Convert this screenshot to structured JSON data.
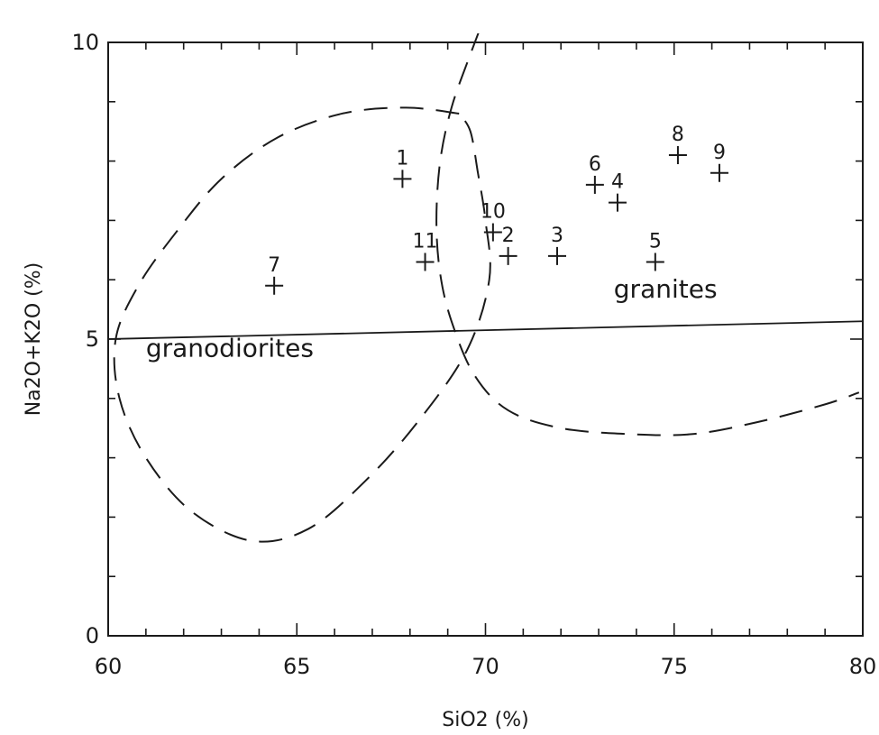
{
  "chart_data": {
    "type": "scatter",
    "xlabel": "SiO2 (%)",
    "ylabel": "Na2O+K2O (%)",
    "xlim": [
      60,
      80
    ],
    "ylim": [
      0,
      10
    ],
    "x_ticks": [
      60,
      65,
      70,
      75,
      80
    ],
    "y_ticks": [
      0,
      5,
      10
    ],
    "x_minor_step": 1,
    "y_minor_step": 1,
    "grid": false,
    "points": [
      {
        "label": "1",
        "x": 67.8,
        "y": 7.7
      },
      {
        "label": "2",
        "x": 70.6,
        "y": 6.4
      },
      {
        "label": "3",
        "x": 71.9,
        "y": 6.4
      },
      {
        "label": "4",
        "x": 73.5,
        "y": 7.3
      },
      {
        "label": "5",
        "x": 74.5,
        "y": 6.3
      },
      {
        "label": "6",
        "x": 72.9,
        "y": 7.6
      },
      {
        "label": "7",
        "x": 64.4,
        "y": 5.9
      },
      {
        "label": "8",
        "x": 75.1,
        "y": 8.1
      },
      {
        "label": "9",
        "x": 76.2,
        "y": 7.8
      },
      {
        "label": "10",
        "x": 70.2,
        "y": 6.8
      },
      {
        "label": "11",
        "x": 68.4,
        "y": 6.3
      }
    ],
    "divider_line": [
      [
        60,
        5
      ],
      [
        80,
        5.3
      ]
    ],
    "regions": [
      {
        "name": "granodiorites",
        "label_at": [
          61,
          4.7
        ],
        "boundary": [
          [
            69.3,
            8.8
          ],
          [
            67.9,
            8.9
          ],
          [
            66.2,
            8.8
          ],
          [
            64.5,
            8.4
          ],
          [
            63,
            7.7
          ],
          [
            61.8,
            6.8
          ],
          [
            60.8,
            5.9
          ],
          [
            60.2,
            5.0
          ],
          [
            60.3,
            4.0
          ],
          [
            61,
            3.0
          ],
          [
            62.2,
            2.1
          ],
          [
            63.8,
            1.6
          ],
          [
            65.3,
            1.8
          ],
          [
            66.8,
            2.6
          ],
          [
            68.2,
            3.6
          ],
          [
            69.5,
            4.8
          ],
          [
            70.1,
            6.0
          ],
          [
            70.0,
            7.0
          ],
          [
            69.8,
            7.8
          ],
          [
            69.6,
            8.5
          ],
          [
            69.3,
            8.8
          ]
        ]
      },
      {
        "name": "granites",
        "label_at": [
          73.4,
          5.7
        ],
        "boundary": [
          [
            70.2,
            10.8
          ],
          [
            69.6,
            9.8
          ],
          [
            69.1,
            8.9
          ],
          [
            68.8,
            8.0
          ],
          [
            68.7,
            7.0
          ],
          [
            68.8,
            6.1
          ],
          [
            69.1,
            5.3
          ],
          [
            69.7,
            4.4
          ],
          [
            70.6,
            3.8
          ],
          [
            72,
            3.5
          ],
          [
            73.8,
            3.4
          ],
          [
            75.5,
            3.4
          ],
          [
            77.2,
            3.6
          ],
          [
            79,
            3.9
          ],
          [
            79.9,
            4.1
          ]
        ]
      }
    ]
  }
}
